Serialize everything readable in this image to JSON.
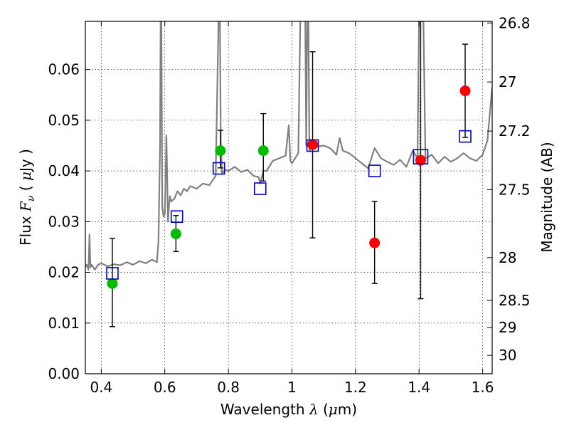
{
  "chart_data": {
    "type": "scatter",
    "title": "",
    "xlabel": "Wavelength  λ (μm)",
    "xlabel_parts": {
      "prefix": "Wavelength  ",
      "lambda": "λ",
      "unit_open": " (",
      "mu": "μ",
      "unit_rest": "m)"
    },
    "ylabel": "Flux  Fν  ( μJy )",
    "ylabel_parts": {
      "prefix": "Flux  ",
      "F": "F",
      "nu": "ν",
      "open": "  ( ",
      "mu": "μ",
      "rest": "Jy )"
    },
    "y2label": "Magnitude (AB)",
    "xlim": [
      0.35,
      1.63
    ],
    "ylim": [
      0.0,
      0.0695
    ],
    "grid": true,
    "x_ticks": [
      0.4,
      0.6,
      0.8,
      1.0,
      1.2,
      1.4,
      1.6
    ],
    "x_tick_labels": [
      "0.4",
      "0.6",
      "0.8",
      "1",
      "1.2",
      "1.4",
      "1.6"
    ],
    "y_ticks": [
      0.0,
      0.01,
      0.02,
      0.03,
      0.04,
      0.05,
      0.06
    ],
    "y_tick_labels": [
      "0.00",
      "0.01",
      "0.02",
      "0.03",
      "0.04",
      "0.05",
      "0.06"
    ],
    "y2_ticks": [
      {
        "mag": 26.8,
        "label": "26.8"
      },
      {
        "mag": 27.0,
        "label": "27"
      },
      {
        "mag": 27.2,
        "label": "27.2"
      },
      {
        "mag": 27.5,
        "label": "27.5"
      },
      {
        "mag": 28.0,
        "label": "28"
      },
      {
        "mag": 28.5,
        "label": "28.5"
      },
      {
        "mag": 29.0,
        "label": "29"
      },
      {
        "mag": 30.0,
        "label": "30"
      }
    ],
    "series": [
      {
        "kind": "line",
        "role": "model-spectrum",
        "color": "#808080",
        "x": [
          0.35,
          0.355,
          0.36,
          0.363,
          0.366,
          0.37,
          0.38,
          0.39,
          0.4,
          0.42,
          0.44,
          0.46,
          0.48,
          0.5,
          0.52,
          0.54,
          0.56,
          0.575,
          0.58,
          0.585,
          0.588,
          0.592,
          0.596,
          0.6,
          0.605,
          0.61,
          0.613,
          0.616,
          0.62,
          0.63,
          0.64,
          0.65,
          0.66,
          0.67,
          0.68,
          0.7,
          0.72,
          0.74,
          0.76,
          0.768,
          0.772,
          0.776,
          0.78,
          0.79,
          0.8,
          0.82,
          0.84,
          0.86,
          0.88,
          0.895,
          0.9,
          0.91,
          0.92,
          0.94,
          0.96,
          0.98,
          0.99,
          0.995,
          1.0,
          1.01,
          1.02,
          1.03,
          1.04,
          1.045,
          1.05,
          1.055,
          1.06,
          1.08,
          1.1,
          1.12,
          1.14,
          1.15,
          1.16,
          1.18,
          1.2,
          1.22,
          1.24,
          1.26,
          1.28,
          1.3,
          1.32,
          1.34,
          1.36,
          1.38,
          1.395,
          1.4,
          1.41,
          1.42,
          1.44,
          1.46,
          1.48,
          1.5,
          1.52,
          1.54,
          1.56,
          1.58,
          1.6,
          1.615,
          1.63
        ],
        "y": [
          0.021,
          0.0215,
          0.0205,
          0.0275,
          0.021,
          0.0215,
          0.0205,
          0.0215,
          0.0218,
          0.0212,
          0.0216,
          0.0214,
          0.022,
          0.0215,
          0.0222,
          0.0218,
          0.0225,
          0.022,
          0.026,
          0.045,
          0.085,
          0.033,
          0.031,
          0.0315,
          0.047,
          0.03,
          0.033,
          0.035,
          0.034,
          0.0345,
          0.036,
          0.0352,
          0.0365,
          0.036,
          0.037,
          0.0365,
          0.0375,
          0.0372,
          0.039,
          0.066,
          0.085,
          0.046,
          0.0395,
          0.0402,
          0.04,
          0.0408,
          0.0398,
          0.0402,
          0.039,
          0.0388,
          0.0375,
          0.04,
          0.04,
          0.042,
          0.0425,
          0.043,
          0.049,
          0.042,
          0.0415,
          0.0425,
          0.0435,
          0.085,
          0.085,
          0.045,
          0.085,
          0.044,
          0.0445,
          0.0448,
          0.045,
          0.0445,
          0.0432,
          0.0465,
          0.044,
          0.0435,
          0.0425,
          0.0415,
          0.0405,
          0.0445,
          0.0425,
          0.0418,
          0.0412,
          0.0422,
          0.0408,
          0.044,
          0.0425,
          0.07,
          0.085,
          0.0425,
          0.0432,
          0.0415,
          0.0428,
          0.0418,
          0.0425,
          0.0435,
          0.0425,
          0.042,
          0.0432,
          0.046,
          0.0565
        ]
      },
      {
        "kind": "scatter",
        "role": "observed-green",
        "color": "#00bb00",
        "points": [
          {
            "x": 0.435,
            "y": 0.0178,
            "err_lo": 0.0093,
            "err_hi": 0.0267
          },
          {
            "x": 0.635,
            "y": 0.0276,
            "err_lo": 0.0241,
            "err_hi": 0.0312
          },
          {
            "x": 0.775,
            "y": 0.044,
            "err_lo": 0.0406,
            "err_hi": 0.048
          },
          {
            "x": 0.91,
            "y": 0.044,
            "err_lo": 0.038,
            "err_hi": 0.0513
          }
        ]
      },
      {
        "kind": "scatter",
        "role": "observed-red",
        "color": "#ff0000",
        "points": [
          {
            "x": 1.065,
            "y": 0.0452,
            "err_lo": 0.0268,
            "err_hi": 0.0635
          },
          {
            "x": 1.26,
            "y": 0.0258,
            "err_lo": 0.0178,
            "err_hi": 0.034
          },
          {
            "x": 1.405,
            "y": 0.0421,
            "err_lo": 0.0148,
            "err_hi": 0.0695
          },
          {
            "x": 1.545,
            "y": 0.0558,
            "err_lo": 0.0466,
            "err_hi": 0.065
          }
        ]
      },
      {
        "kind": "scatter",
        "role": "model-photometry",
        "color": "#0000cc",
        "marker": "square",
        "points": [
          {
            "x": 0.435,
            "y": 0.0198,
            "size": "normal"
          },
          {
            "x": 0.638,
            "y": 0.031,
            "size": "normal"
          },
          {
            "x": 0.77,
            "y": 0.0405,
            "size": "normal"
          },
          {
            "x": 0.9,
            "y": 0.0365,
            "size": "normal"
          },
          {
            "x": 1.065,
            "y": 0.045,
            "size": "normal"
          },
          {
            "x": 1.26,
            "y": 0.04,
            "size": "normal"
          },
          {
            "x": 1.405,
            "y": 0.0428,
            "size": "large"
          },
          {
            "x": 1.545,
            "y": 0.0468,
            "size": "normal"
          }
        ]
      }
    ]
  }
}
